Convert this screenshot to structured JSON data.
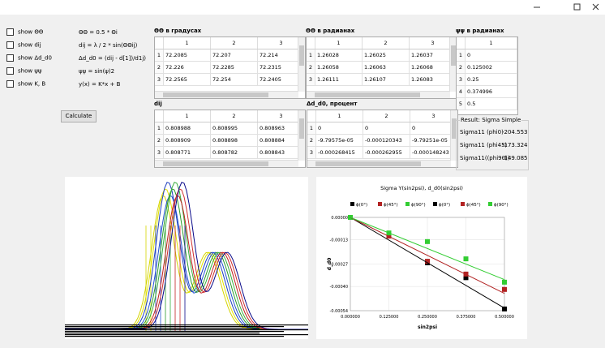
{
  "checkboxes": [
    "show ΘΘ",
    "show dij",
    "show Δd_d0",
    "show ψψ",
    "show  K, B"
  ],
  "formulas": [
    "ΘΘ = 0.5 * Θi",
    "dij = λ / 2 * sin(ΘΘij)",
    "Δd_d0 = (dij - d[1])/d1j)",
    "ψψ = sin(ψ)2",
    "y(x) = K*x + B"
  ],
  "button": "Calculate",
  "tables": [
    {
      "title": "ΘΘ в градусах",
      "columns": [
        "1",
        "2",
        "3"
      ],
      "row_labels": [
        "1",
        "2",
        "3"
      ],
      "rows": [
        [
          "72.2085",
          "72.207",
          "72.214"
        ],
        [
          "72.226",
          "72.2285",
          "72.2315"
        ],
        [
          "72.2565",
          "72.254",
          "72.2405"
        ]
      ]
    },
    {
      "title": "ΘΘ в радианах",
      "columns": [
        "1",
        "2",
        "3"
      ],
      "row_labels": [
        "1",
        "2",
        "3"
      ],
      "rows": [
        [
          "1.26028",
          "1.26025",
          "1.26037"
        ],
        [
          "1.26058",
          "1.26063",
          "1.26068"
        ],
        [
          "1.26111",
          "1.26107",
          "1.26083"
        ]
      ]
    },
    {
      "title": "ψψ в радианах",
      "columns": [
        "1"
      ],
      "row_labels": [
        "1",
        "2",
        "3",
        "4",
        "5"
      ],
      "rows": [
        [
          "0"
        ],
        [
          "0.125002"
        ],
        [
          "0.25"
        ],
        [
          "0.374996"
        ],
        [
          "0.5"
        ]
      ]
    },
    {
      "title": "dij",
      "columns": [
        "1",
        "2",
        "3"
      ],
      "row_labels": [
        "1",
        "2",
        "3"
      ],
      "rows": [
        [
          "0.808988",
          "0.808995",
          "0.808963"
        ],
        [
          "0.808909",
          "0.808898",
          "0.808884"
        ],
        [
          "0.808771",
          "0.808782",
          "0.808843"
        ]
      ]
    },
    {
      "title": "Δd_d0, процент",
      "columns": [
        "1",
        "2",
        "3"
      ],
      "row_labels": [
        "1",
        "2",
        "3"
      ],
      "rows": [
        [
          "0",
          "0",
          "0"
        ],
        [
          "-9.79575e-05",
          "-0.000120343",
          "-9.79251e-05"
        ],
        [
          "-0.000268415",
          "-0.000262955",
          "-0.000148243"
        ]
      ]
    }
  ],
  "result": {
    "title": "Result: Sigma Simple",
    "rows": [
      [
        "Sigma11 (phi0)",
        "-204.553"
      ],
      [
        "Sigma11 (phi45)",
        "-173.324"
      ],
      [
        "Sigma11((phi90))",
        "-149.085"
      ]
    ]
  },
  "chart_data": {
    "type": "scatter",
    "title": "Sigma Y(sin2psi), d_d0(sin2psi)",
    "x_label": "sin2psi",
    "y_label": "d_d0",
    "xlim": [
      0,
      0.5
    ],
    "ylim": [
      -0.00054,
      0
    ],
    "xticks": [
      {
        "value": 0,
        "label": "0.000000"
      },
      {
        "value": 0.125,
        "label": "0.125000"
      },
      {
        "value": 0.25,
        "label": "0.250000"
      },
      {
        "value": 0.375,
        "label": "0.375000"
      },
      {
        "value": 0.5,
        "label": "0.500000"
      }
    ],
    "yticks": [
      {
        "value": 0,
        "label": "0.00000"
      },
      -0.00013,
      -0.00027,
      {
        "value": -0.0004,
        "label": "-0.00040"
      },
      -0.00054
    ],
    "grid": true,
    "series": [
      {
        "name": "ϕ(0°)",
        "color": "#000000",
        "mode": "points",
        "x": [
          0,
          0.125002,
          0.25,
          0.374996,
          0.5
        ],
        "values": [
          0,
          -9.5e-05,
          -0.000263,
          -0.000349,
          -0.00053
        ]
      },
      {
        "name": "ϕ(45°)",
        "color": "#b22222",
        "mode": "points",
        "x": [
          0,
          0.125002,
          0.25,
          0.374996,
          0.5
        ],
        "values": [
          0,
          -0.000108,
          -0.000254,
          -0.000328,
          -0.000417
        ]
      },
      {
        "name": "ϕ(90°)",
        "color": "#32cd32",
        "mode": "points",
        "x": [
          0,
          0.125002,
          0.25,
          0.374996,
          0.5
        ],
        "values": [
          0,
          -9e-05,
          -0.00014,
          -0.00024,
          -0.000375
        ]
      },
      {
        "name": "ϕ(0°)",
        "color": "#000000",
        "mode": "line",
        "x": [
          0,
          0.5
        ],
        "values": [
          0,
          -0.000525
        ]
      },
      {
        "name": "ϕ(45°)",
        "color": "#b22222",
        "mode": "line",
        "x": [
          0,
          0.5
        ],
        "values": [
          0,
          -0.00044
        ]
      },
      {
        "name": "ϕ(90°)",
        "color": "#32cd32",
        "mode": "line",
        "x": [
          0,
          0.5
        ],
        "values": [
          0,
          -0.00036
        ]
      }
    ]
  }
}
